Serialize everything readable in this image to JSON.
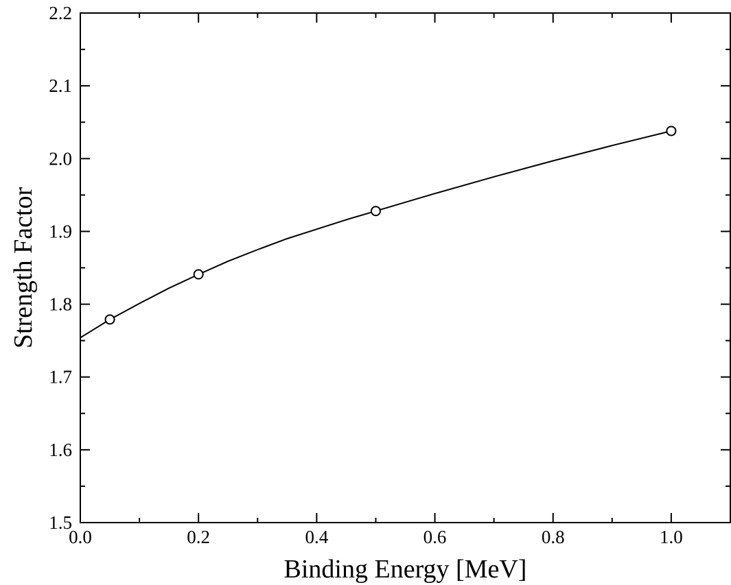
{
  "chart_data": {
    "type": "line",
    "title": "",
    "xlabel": "Binding Energy [MeV]",
    "ylabel": "Strength Factor",
    "xlim": [
      0.0,
      1.1
    ],
    "ylim": [
      1.5,
      2.2
    ],
    "grid": false,
    "x_major_ticks": [
      "0.0",
      "0.2",
      "0.4",
      "0.6",
      "0.8",
      "1.0"
    ],
    "y_major_ticks": [
      "1.5",
      "1.6",
      "1.7",
      "1.8",
      "1.9",
      "2.0",
      "2.1",
      "2.2"
    ],
    "series": [
      {
        "style": "points",
        "marker": "open-circle",
        "x": [
          0.05,
          0.2,
          0.5,
          1.0
        ],
        "y": [
          1.779,
          1.841,
          1.928,
          2.038
        ]
      },
      {
        "style": "line",
        "x": [
          0.0,
          0.02,
          0.05,
          0.1,
          0.15,
          0.2,
          0.25,
          0.3,
          0.35,
          0.4,
          0.45,
          0.5,
          0.6,
          0.7,
          0.8,
          0.9,
          1.0
        ],
        "y": [
          1.754,
          1.764,
          1.779,
          1.801,
          1.822,
          1.841,
          1.859,
          1.875,
          1.89,
          1.903,
          1.916,
          1.928,
          1.952,
          1.975,
          1.997,
          2.018,
          2.038
        ]
      }
    ]
  }
}
